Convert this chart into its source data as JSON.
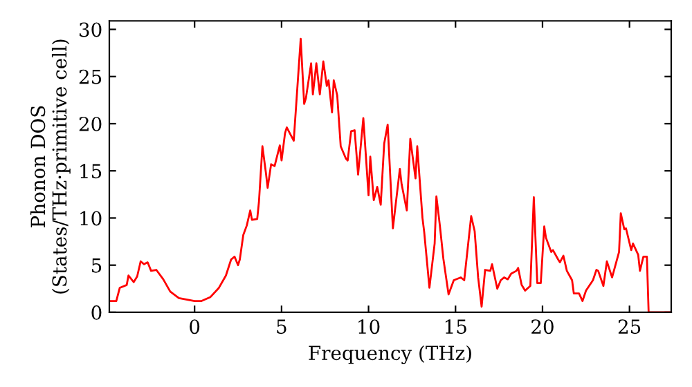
{
  "chart_data": {
    "type": "line",
    "xlabel": "Frequency (THz)",
    "ylabel": "Phonon DOS\n(States/THz·primitive cell)",
    "x": [
      -4.9,
      -4.5,
      -4.3,
      -3.9,
      -3.8,
      -3.5,
      -3.3,
      -3.1,
      -2.9,
      -2.7,
      -2.5,
      -2.2,
      -1.8,
      -1.4,
      -0.9,
      0,
      0.4,
      0.9,
      1.4,
      1.8,
      2.1,
      2.3,
      2.5,
      2.6,
      2.8,
      3.0,
      3.2,
      3.3,
      3.6,
      3.7,
      3.9,
      4.1,
      4.2,
      4.4,
      4.6,
      4.9,
      5.0,
      5.2,
      5.3,
      5.7,
      6.1,
      6.3,
      6.4,
      6.7,
      6.8,
      7.0,
      7.2,
      7.4,
      7.6,
      7.7,
      7.9,
      8.0,
      8.2,
      8.4,
      8.7,
      8.8,
      9.0,
      9.2,
      9.4,
      9.7,
      10.0,
      10.1,
      10.3,
      10.5,
      10.7,
      10.9,
      11.1,
      11.4,
      11.5,
      11.8,
      11.9,
      12.2,
      12.4,
      12.7,
      12.8,
      13.1,
      13.2,
      13.5,
      13.8,
      13.9,
      14.1,
      14.3,
      14.6,
      14.9,
      15.3,
      15.5,
      15.8,
      15.9,
      16.1,
      16.3,
      16.5,
      16.7,
      17.0,
      17.1,
      17.4,
      17.6,
      17.8,
      18.0,
      18.2,
      18.5,
      18.6,
      18.8,
      19.0,
      19.3,
      19.5,
      19.7,
      19.9,
      20.1,
      20.2,
      20.5,
      20.6,
      20.9,
      21.0,
      21.2,
      21.4,
      21.7,
      21.8,
      22.1,
      22.3,
      22.5,
      22.9,
      23.1,
      23.2,
      23.5,
      23.7,
      24.0,
      24.4,
      24.5,
      24.7,
      24.8,
      25.1,
      25.2,
      25.5,
      25.6,
      25.8,
      26.0,
      26.1,
      27.4
    ],
    "series": [
      {
        "color": "#ff0000",
        "values": [
          1.2,
          1.2,
          2.6,
          2.9,
          3.9,
          3.2,
          3.8,
          5.4,
          5.1,
          5.3,
          4.4,
          4.5,
          3.5,
          2.2,
          1.5,
          1.2,
          1.2,
          1.6,
          2.6,
          3.9,
          5.6,
          5.9,
          5.0,
          5.6,
          8.2,
          9.2,
          10.8,
          9.8,
          9.9,
          11.7,
          17.6,
          14.8,
          13.2,
          15.7,
          15.5,
          17.7,
          16.1,
          19.0,
          19.6,
          18.2,
          29.0,
          22.1,
          22.7,
          26.4,
          23.1,
          26.4,
          23.1,
          26.6,
          24.0,
          24.6,
          21.2,
          24.6,
          23.0,
          17.6,
          16.3,
          16.1,
          19.2,
          19.3,
          14.6,
          20.6,
          12.4,
          16.5,
          11.9,
          13.3,
          11.4,
          17.9,
          19.9,
          8.9,
          10.5,
          15.2,
          13.6,
          10.8,
          18.4,
          14.2,
          17.6,
          10.0,
          8.5,
          2.6,
          7.3,
          12.3,
          9.2,
          5.7,
          1.9,
          3.4,
          3.7,
          3.4,
          8.5,
          10.2,
          8.6,
          3.7,
          0.6,
          4.5,
          4.4,
          5.1,
          2.5,
          3.4,
          3.7,
          3.5,
          4.1,
          4.4,
          4.7,
          2.9,
          2.3,
          2.8,
          12.2,
          3.1,
          3.1,
          9.1,
          7.9,
          6.4,
          6.6,
          5.6,
          5.3,
          6.0,
          4.4,
          3.4,
          2.0,
          2.0,
          1.2,
          2.3,
          3.4,
          4.5,
          4.4,
          2.8,
          5.4,
          3.7,
          6.4,
          10.5,
          8.8,
          8.9,
          6.6,
          7.3,
          6.1,
          4.4,
          5.9,
          5.9,
          0,
          0
        ]
      }
    ],
    "xlim": [
      -4.9,
      27.4
    ],
    "ylim": [
      0,
      30.9
    ],
    "xticks": [
      0,
      5,
      10,
      15,
      20,
      25
    ],
    "yticks": [
      0,
      5,
      10,
      15,
      20,
      25,
      30
    ],
    "grid": false,
    "legend": false,
    "marker": "none",
    "line_style": "solid"
  }
}
